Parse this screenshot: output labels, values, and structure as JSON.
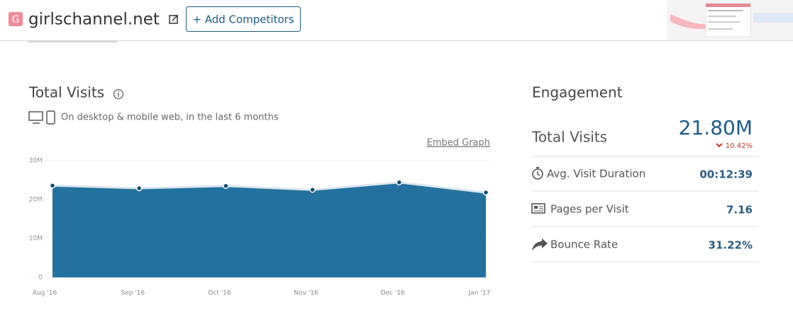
{
  "header": {
    "site": "girlschannel.net",
    "logo_letter": "G",
    "button": "+ Add Competitors"
  },
  "chart_data": {
    "type": "area",
    "title": "Total Visits",
    "subtitle": "On desktop & mobile web, in the last 6 months",
    "link": "Embed Graph",
    "categories": [
      "Aug '16",
      "Sep '16",
      "Oct '16",
      "Nov '16",
      "Dec '16",
      "Jan '17"
    ],
    "values": [
      23600000,
      22900000,
      23500000,
      22500000,
      24400000,
      21800000
    ],
    "color": "#22719f",
    "ylim": [
      0,
      30000000
    ],
    "yticks": [
      {
        "value": 0,
        "label": "0"
      },
      {
        "value": 10000000,
        "label": "10M"
      },
      {
        "value": 20000000,
        "label": "20M"
      },
      {
        "value": 30000000,
        "label": "30M"
      }
    ],
    "grid": true
  },
  "engagement": {
    "title": "Engagement",
    "total_visits": {
      "label": "Total Visits",
      "value": "21.80M",
      "change": "10.42%"
    },
    "rows": [
      {
        "label": "Avg. Visit Duration",
        "value": "00:12:39"
      },
      {
        "label": "Pages per Visit",
        "value": "7.16"
      },
      {
        "label": "Bounce Rate",
        "value": "31.22%"
      }
    ]
  }
}
